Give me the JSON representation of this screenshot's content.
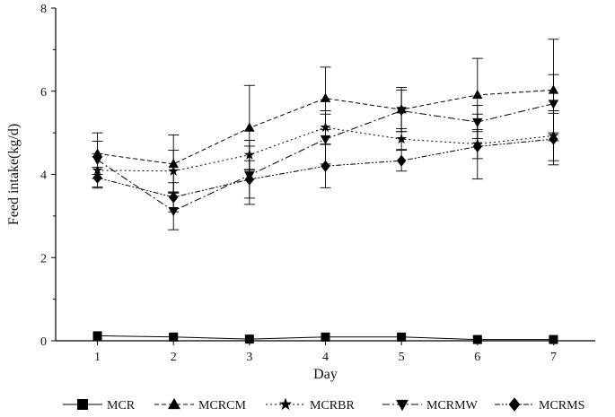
{
  "chart_data": {
    "type": "line",
    "xlabel": "Day",
    "ylabel": "Feed intake(kg/d)",
    "x": [
      1,
      2,
      3,
      4,
      5,
      6,
      7
    ],
    "xlim": [
      0.45,
      7.55
    ],
    "ylim": [
      0,
      8
    ],
    "xticks": [
      1,
      2,
      3,
      4,
      5,
      6,
      7
    ],
    "yticks": [
      0,
      2,
      4,
      6,
      8
    ],
    "grid": false,
    "legend": "bottom",
    "series": [
      {
        "name": "MCR",
        "marker": "square",
        "dash": "solid",
        "values": [
          0.12,
          0.09,
          0.04,
          0.09,
          0.09,
          0.03,
          0.03
        ],
        "err": [
          0,
          0,
          0,
          0,
          0,
          0,
          0
        ]
      },
      {
        "name": "MCRCM",
        "marker": "triangle-up",
        "dash": "5,3",
        "values": [
          4.5,
          4.25,
          5.12,
          5.83,
          5.56,
          5.91,
          6.03
        ],
        "err": [
          0.5,
          0.7,
          1.02,
          0.75,
          0.53,
          0.88,
          1.22
        ]
      },
      {
        "name": "MCRBR",
        "marker": "star",
        "dash": "2,3",
        "values": [
          4.1,
          4.08,
          4.47,
          5.13,
          4.85,
          4.73,
          4.93
        ],
        "err": [
          0.4,
          0.5,
          0.35,
          0.4,
          0.25,
          0.35,
          0.6
        ]
      },
      {
        "name": "MCRMW",
        "marker": "triangle-down",
        "dash": "8,3,2,3",
        "values": [
          4.35,
          3.12,
          3.98,
          4.85,
          5.53,
          5.26,
          5.7
        ],
        "err": [
          0.45,
          0.45,
          0.7,
          0.6,
          0.5,
          0.4,
          0.7
        ]
      },
      {
        "name": "MCRMS",
        "marker": "diamond",
        "dash": "6,2,2,2,2,2",
        "values": [
          3.92,
          3.45,
          3.88,
          4.2,
          4.33,
          4.67,
          4.85
        ],
        "err": [
          0.25,
          0.35,
          0.45,
          0.52,
          0.25,
          0.78,
          0.62
        ]
      }
    ]
  }
}
